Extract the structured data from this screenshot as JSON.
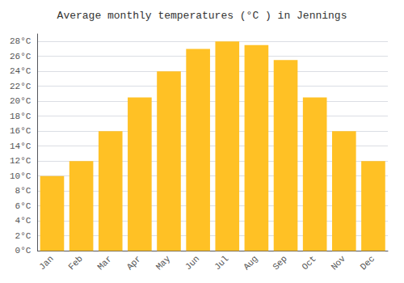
{
  "chart_data": {
    "type": "bar",
    "title": "Average monthly temperatures (°C ) in Jennings",
    "categories": [
      "Jan",
      "Feb",
      "Mar",
      "Apr",
      "May",
      "Jun",
      "Jul",
      "Aug",
      "Sep",
      "Oct",
      "Nov",
      "Dec"
    ],
    "values": [
      10,
      12,
      16,
      20.5,
      24,
      27,
      28,
      27.5,
      25.5,
      20.5,
      16,
      12
    ],
    "color": "#FFC125",
    "ylim": [
      0,
      29
    ],
    "yticks": [
      {
        "value": 0,
        "label": "0°C"
      },
      {
        "value": 2,
        "label": "2°C"
      },
      {
        "value": 4,
        "label": "4°C"
      },
      {
        "value": 6,
        "label": "6°C"
      },
      {
        "value": 8,
        "label": "8°C"
      },
      {
        "value": 10,
        "label": "10°C"
      },
      {
        "value": 12,
        "label": "12°C"
      },
      {
        "value": 14,
        "label": "14°C"
      },
      {
        "value": 16,
        "label": "16°C"
      },
      {
        "value": 18,
        "label": "18°C"
      },
      {
        "value": 20,
        "label": "20°C"
      },
      {
        "value": 22,
        "label": "22°C"
      },
      {
        "value": 24,
        "label": "24°C"
      },
      {
        "value": 26,
        "label": "26°C"
      },
      {
        "value": 28,
        "label": "28°C"
      }
    ],
    "grid": true
  }
}
